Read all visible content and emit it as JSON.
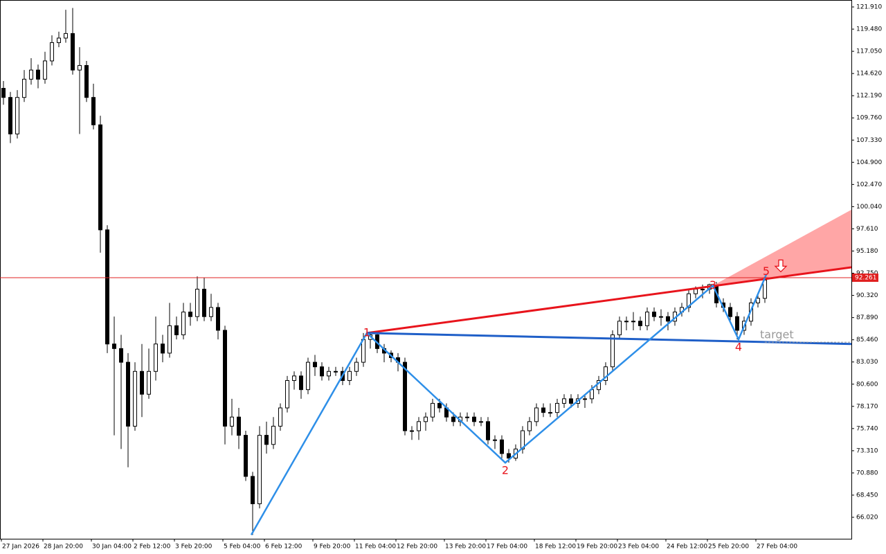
{
  "chart_data": {
    "type": "candlestick",
    "ylim": [
      63.67,
      122.67
    ],
    "yticks": [
      {
        "value": 121.91,
        "label": "121.910"
      },
      {
        "value": 119.48,
        "label": "119.480"
      },
      {
        "value": 117.05,
        "label": "117.050"
      },
      {
        "value": 114.62,
        "label": "114.620"
      },
      {
        "value": 112.19,
        "label": "112.190"
      },
      {
        "value": 109.76,
        "label": "109.760"
      },
      {
        "value": 107.33,
        "label": "107.330"
      },
      {
        "value": 104.9,
        "label": "104.900"
      },
      {
        "value": 102.47,
        "label": "102.470"
      },
      {
        "value": 100.04,
        "label": "100.040"
      },
      {
        "value": 97.61,
        "label": "97.610"
      },
      {
        "value": 95.18,
        "label": "95.180"
      },
      {
        "value": 92.75,
        "label": "92.750"
      },
      {
        "value": 90.32,
        "label": "90.320"
      },
      {
        "value": 87.89,
        "label": "87.890"
      },
      {
        "value": 85.46,
        "label": "85.460"
      },
      {
        "value": 83.03,
        "label": "83.030"
      },
      {
        "value": 80.6,
        "label": "80.600"
      },
      {
        "value": 78.17,
        "label": "78.170"
      },
      {
        "value": 75.74,
        "label": "75.740"
      },
      {
        "value": 73.31,
        "label": "73.310"
      },
      {
        "value": 70.88,
        "label": "70.880"
      },
      {
        "value": 68.45,
        "label": "68.450"
      },
      {
        "value": 66.02,
        "label": "66.020"
      }
    ],
    "categories": [
      "27 Jan 2026",
      null,
      null,
      null,
      null,
      null,
      "28 Jan 20:00",
      null,
      null,
      null,
      null,
      null,
      null,
      "30 Jan 04:00",
      null,
      null,
      null,
      null,
      null,
      "2 Feb 12:00",
      null,
      null,
      null,
      null,
      null,
      "3 Feb 20:00",
      null,
      null,
      null,
      null,
      null,
      null,
      "5 Feb 04:00",
      null,
      null,
      null,
      null,
      null,
      "6 Feb 12:00",
      null,
      null,
      null,
      null,
      null,
      null,
      "9 Feb 20:00",
      null,
      null,
      null,
      null,
      null,
      "11 Feb 04:00",
      null,
      null,
      null,
      null,
      null,
      "12 Feb 20:00",
      null,
      null,
      null,
      null,
      null,
      null,
      "13 Feb 20:00",
      null,
      null,
      null,
      null,
      null,
      "17 Feb 04:00",
      null,
      null,
      null,
      null,
      null,
      null,
      "18 Feb 12:00",
      null,
      null,
      null,
      null,
      null,
      "19 Feb 20:00",
      null,
      null,
      null,
      null,
      null,
      "23 Feb 04:00",
      null,
      null,
      null,
      null,
      null,
      null,
      "24 Feb 12:00",
      null,
      null,
      null,
      null,
      null,
      "25 Feb 20:00",
      null,
      null,
      null,
      null,
      null,
      null,
      "27 Feb 04:00",
      null
    ],
    "ohlc": [
      [
        113,
        113.8,
        111.2,
        112
      ],
      [
        112,
        112.6,
        107,
        108
      ],
      [
        108,
        112.8,
        107.5,
        112
      ],
      [
        112,
        115,
        111.5,
        114
      ],
      [
        114,
        116.3,
        113.4,
        115
      ],
      [
        115,
        115.6,
        113,
        114
      ],
      [
        114,
        117,
        113.5,
        116
      ],
      [
        116,
        118.8,
        115.5,
        118
      ],
      [
        118,
        119.2,
        117.5,
        118.5
      ],
      [
        118.5,
        121.6,
        118,
        119
      ],
      [
        119,
        121.8,
        114.5,
        115
      ],
      [
        115,
        117.5,
        108,
        115.5
      ],
      [
        115.5,
        116,
        111.5,
        112
      ],
      [
        112,
        113.5,
        108.5,
        109
      ],
      [
        109,
        110,
        95,
        97.5
      ],
      [
        97.5,
        98,
        84,
        85
      ],
      [
        85,
        88,
        75,
        84.5
      ],
      [
        84.5,
        86,
        73.5,
        83
      ],
      [
        83,
        84,
        71.5,
        76
      ],
      [
        76,
        83,
        75.5,
        82
      ],
      [
        82,
        85,
        77,
        79.5
      ],
      [
        79.5,
        84.5,
        79,
        82
      ],
      [
        82,
        88,
        81,
        85
      ],
      [
        85,
        86,
        83,
        84
      ],
      [
        84,
        89.5,
        83.5,
        87
      ],
      [
        87,
        88,
        85.5,
        86
      ],
      [
        86,
        89.5,
        85.5,
        88.5
      ],
      [
        88.5,
        89.5,
        87,
        88
      ],
      [
        88,
        92.4,
        87.5,
        91
      ],
      [
        91,
        92.3,
        87.5,
        88
      ],
      [
        88,
        90.5,
        87.5,
        89
      ],
      [
        89,
        89.5,
        85.5,
        86.5
      ],
      [
        86.5,
        87,
        74,
        76
      ],
      [
        76,
        79,
        75,
        77
      ],
      [
        77,
        78,
        73.5,
        75
      ],
      [
        75,
        75.5,
        70,
        70.5
      ],
      [
        70.5,
        71,
        64.1,
        67.5
      ],
      [
        67.5,
        76,
        67,
        75
      ],
      [
        75,
        76.5,
        73,
        74
      ],
      [
        74,
        77,
        73.5,
        76
      ],
      [
        76,
        78.5,
        75.5,
        78
      ],
      [
        78,
        81.5,
        77.5,
        81
      ],
      [
        81,
        82,
        80,
        81.5
      ],
      [
        81.5,
        82,
        79,
        80
      ],
      [
        80,
        83.5,
        79.5,
        83
      ],
      [
        83,
        83.8,
        81.5,
        82.5
      ],
      [
        82.5,
        83,
        81,
        81.5
      ],
      [
        81.5,
        82.5,
        81,
        82
      ],
      [
        82,
        82.5,
        81.5,
        82
      ],
      [
        82,
        82.5,
        80.5,
        81
      ],
      [
        81,
        82.5,
        80.5,
        82
      ],
      [
        82,
        83.5,
        81.5,
        83
      ],
      [
        83,
        86.2,
        82.5,
        85.5
      ],
      [
        85.5,
        86.2,
        84.5,
        86
      ],
      [
        86,
        86.2,
        84,
        84.5
      ],
      [
        84.5,
        85,
        83,
        84
      ],
      [
        84,
        84.3,
        83,
        83.5
      ],
      [
        83.5,
        84,
        82,
        83
      ],
      [
        83,
        83.5,
        75,
        75.5
      ],
      [
        75.5,
        76,
        74.5,
        75.5
      ],
      [
        75.5,
        77,
        74.5,
        76.5
      ],
      [
        76.5,
        77.5,
        75.5,
        77
      ],
      [
        77,
        79,
        76.5,
        78.5
      ],
      [
        78.5,
        79,
        77.5,
        78
      ],
      [
        78,
        78.5,
        76.5,
        77
      ],
      [
        77,
        77.5,
        76,
        76.5
      ],
      [
        76.5,
        77.5,
        76,
        77
      ],
      [
        77,
        77.5,
        76.5,
        77
      ],
      [
        77,
        77.5,
        76,
        76.5
      ],
      [
        76.5,
        77,
        76,
        76.5
      ],
      [
        76.5,
        77,
        74,
        74.5
      ],
      [
        74.5,
        75,
        73.5,
        74.5
      ],
      [
        74.5,
        75,
        72.5,
        73
      ],
      [
        73,
        73.5,
        72,
        72.5
      ],
      [
        72.5,
        74,
        72.2,
        73.5
      ],
      [
        73.5,
        76,
        73,
        75.5
      ],
      [
        75.5,
        77,
        75,
        76.5
      ],
      [
        76.5,
        78.5,
        76,
        78
      ],
      [
        78,
        78.5,
        77,
        77.5
      ],
      [
        77.5,
        78.5,
        77,
        77.5
      ],
      [
        77.5,
        79,
        77,
        78.5
      ],
      [
        78.5,
        79.5,
        78,
        79
      ],
      [
        79,
        79.5,
        78,
        78.5
      ],
      [
        78.5,
        79.5,
        78,
        79
      ],
      [
        79,
        79.5,
        78,
        79
      ],
      [
        79,
        80.5,
        78.5,
        80
      ],
      [
        80,
        81.5,
        79.5,
        81
      ],
      [
        81,
        83,
        80.5,
        82.5
      ],
      [
        82.5,
        86.5,
        82,
        86
      ],
      [
        86,
        88,
        85.5,
        87.5
      ],
      [
        87.5,
        88,
        86.5,
        87.5
      ],
      [
        87.5,
        88.5,
        86.5,
        87.5
      ],
      [
        87.5,
        88,
        86.5,
        87
      ],
      [
        87,
        89,
        86.5,
        88.5
      ],
      [
        88.5,
        89,
        87.5,
        88
      ],
      [
        88,
        88.8,
        87,
        88
      ],
      [
        88,
        88.5,
        86.5,
        87.5
      ],
      [
        87.5,
        89,
        87,
        88.5
      ],
      [
        88.5,
        89.5,
        88,
        89
      ],
      [
        89,
        91,
        88.5,
        90.5
      ],
      [
        90.5,
        91.3,
        90,
        91
      ],
      [
        91,
        91.5,
        90,
        91
      ],
      [
        91,
        91.6,
        90.5,
        91.5
      ],
      [
        91.5,
        91.8,
        89,
        89.5
      ],
      [
        89.5,
        90,
        88.5,
        89
      ],
      [
        89,
        89.5,
        87.5,
        88
      ],
      [
        88,
        88.5,
        85.5,
        86.5
      ],
      [
        86.5,
        88,
        86,
        87.5
      ],
      [
        87.5,
        90,
        87,
        89.5
      ],
      [
        89.5,
        90.5,
        89,
        90
      ],
      [
        90,
        92.6,
        89.5,
        92
      ]
    ],
    "price_line": {
      "value": 92.261,
      "color": "#e02020"
    },
    "wave": {
      "color": "#2e8fe8",
      "label_color": "#e8141c",
      "points": [
        {
          "x": 35.8,
          "y": 64.1
        },
        {
          "x": 52.5,
          "y": 86.2,
          "label": "1"
        },
        {
          "x": 72.5,
          "y": 72.0,
          "label": "2"
        },
        {
          "x": 102.5,
          "y": 91.4,
          "label": "3"
        },
        {
          "x": 106.2,
          "y": 85.5,
          "label": "4"
        },
        {
          "x": 110.2,
          "y": 92.6,
          "label": "5"
        }
      ]
    },
    "trend_lines": [
      {
        "color": "#e8141c",
        "x": [
          52.5,
          122.5
        ],
        "y": [
          86.2,
          93.4
        ]
      },
      {
        "color": "#1f5fc8",
        "x": [
          52.5,
          122.5
        ],
        "y": [
          86.2,
          85.0
        ]
      }
    ],
    "zone": {
      "color": "#ff9c9c",
      "x": [
        102.5,
        122.5,
        122.5
      ],
      "y": [
        91.4,
        99.7,
        93.4
      ]
    },
    "target": {
      "label": "target",
      "value": 85.2,
      "x": [
        110,
        122.5
      ],
      "label_x": 109.3
    },
    "signal_arrow": {
      "x": 112.3,
      "y": 94.2,
      "color": "#e8141c"
    }
  }
}
